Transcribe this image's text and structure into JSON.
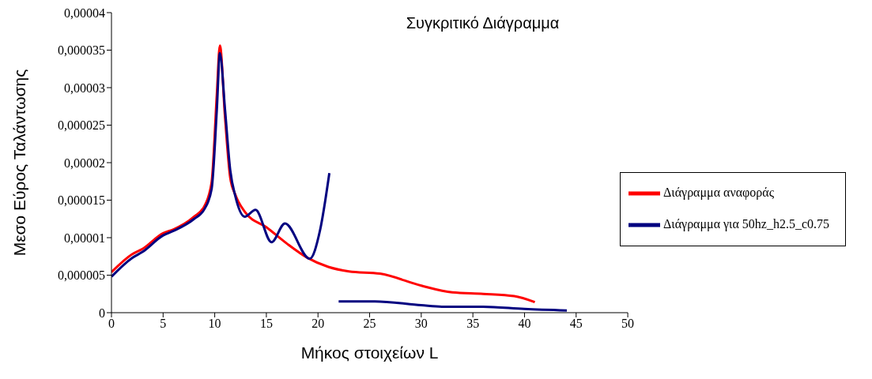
{
  "chart_data": {
    "type": "line",
    "title": "Συγκριτικό Διάγραμμα",
    "xlabel": "Μήκος στοιχείων L",
    "ylabel": "Μεσο Εύρος Ταλάντωσης",
    "xlim": [
      0,
      50
    ],
    "xticks": [
      0,
      5,
      10,
      15,
      20,
      25,
      30,
      35,
      40,
      45,
      50
    ],
    "ylim": [
      0,
      4e-05
    ],
    "yticks": [
      0,
      {
        "value": 5e-06,
        "label": "0,000005"
      },
      {
        "value": 1e-05,
        "label": "0,00001"
      },
      {
        "value": 1.5e-05,
        "label": "0,000015"
      },
      {
        "value": 2e-05,
        "label": "0,00002"
      },
      {
        "value": 2.5e-05,
        "label": "0,000025"
      },
      {
        "value": 3e-05,
        "label": "0,00003"
      },
      {
        "value": 3.5e-05,
        "label": "0,000035"
      },
      {
        "value": 4e-05,
        "label": "0,00004"
      }
    ],
    "grid": false,
    "legend": "right",
    "marker": "none",
    "line_style": "solid",
    "series": [
      {
        "name": "Διάγραμμα αναφοράς",
        "color": "#ff0000",
        "x": [
          0,
          2,
          3,
          5,
          6,
          8,
          9,
          9.7,
          10.2,
          10.5,
          11,
          11.5,
          12,
          13,
          15,
          17,
          19,
          21,
          23,
          26,
          30,
          33,
          36,
          39,
          41
        ],
        "values": [
          5.4e-06,
          7.8e-06,
          8.5e-06,
          1.06e-05,
          1.11e-05,
          1.28e-05,
          1.42e-05,
          1.74e-05,
          2.9e-05,
          3.56e-05,
          2.6e-05,
          1.8e-05,
          1.57e-05,
          1.33e-05,
          1.14e-05,
          9.2e-06,
          7.3e-06,
          6.1e-06,
          5.5e-06,
          5.2e-06,
          3.6e-06,
          2.7e-06,
          2.5e-06,
          2.2e-06,
          1.4e-06
        ]
      },
      {
        "name": "Διάγραμμα για 50hz_h2.5_c0.75",
        "color": "#000080",
        "x": [
          0,
          2,
          3,
          5,
          6,
          8,
          9,
          9.7,
          10.2,
          10.5,
          11,
          11.5,
          12,
          12.9,
          13.95,
          15.5,
          16.8,
          19.2,
          20.2,
          21.1,
          21.5,
          22,
          25.5,
          30,
          32,
          36,
          40,
          44.1
        ],
        "values": [
          4.8e-06,
          7.3e-06,
          8.1e-06,
          1.03e-05,
          1.09e-05,
          1.25e-05,
          1.38e-05,
          1.65e-05,
          2.7e-05,
          3.46e-05,
          2.7e-05,
          1.9e-05,
          1.55e-05,
          1.28e-05,
          1.37e-05,
          9.4e-06,
          1.19e-05,
          7.2e-06,
          1.1e-05,
          1.86e-05,
          null,
          1.5e-06,
          1.5e-06,
          1e-06,
          8e-07,
          8e-07,
          5e-07,
          3e-07
        ]
      }
    ]
  }
}
